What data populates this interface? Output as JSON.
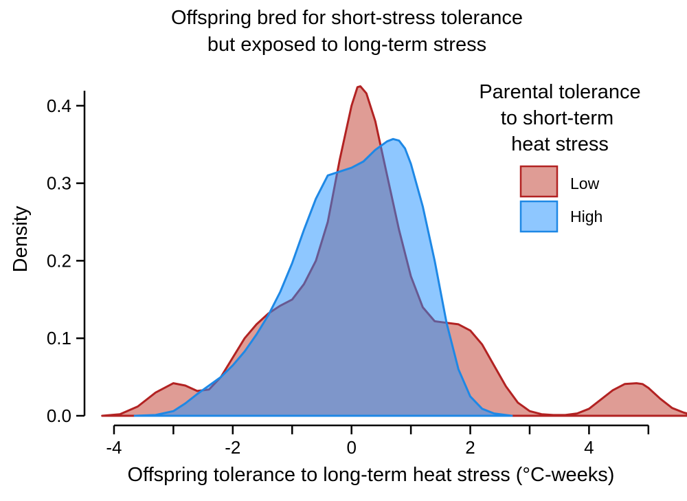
{
  "chart_data": {
    "type": "area",
    "title_lines": [
      "Offspring bred for short-stress tolerance",
      "but exposed to long-term stress"
    ],
    "xlabel": "Offspring tolerance to long-term heat stress (°C-weeks)",
    "ylabel": "Density",
    "xlim": [
      -4.15,
      5.65
    ],
    "ylim": [
      0,
      0.43
    ],
    "x_ticks": [
      -4,
      -3,
      -2,
      -1,
      0,
      1,
      2,
      3,
      4,
      5
    ],
    "x_tick_labels": [
      "-4",
      "",
      "-2",
      "",
      "0",
      "",
      "2",
      "",
      "4",
      ""
    ],
    "y_ticks": [
      0.0,
      0.1,
      0.2,
      0.3,
      0.4
    ],
    "y_tick_labels": [
      "0.0",
      "0.1",
      "0.2",
      "0.3",
      "0.4"
    ],
    "legend": {
      "title_lines": [
        "Parental tolerance",
        "to short-term",
        "heat stress"
      ],
      "position": "top-right"
    },
    "series": [
      {
        "name": "Low",
        "fill": "#c0392b",
        "stroke": "#b22222",
        "x": [
          -4.2,
          -3.9,
          -3.6,
          -3.3,
          -3.0,
          -2.8,
          -2.6,
          -2.4,
          -2.2,
          -2.0,
          -1.8,
          -1.6,
          -1.4,
          -1.2,
          -1.0,
          -0.8,
          -0.6,
          -0.4,
          -0.2,
          0.0,
          0.1,
          0.15,
          0.25,
          0.4,
          0.6,
          0.8,
          1.0,
          1.2,
          1.4,
          1.6,
          1.8,
          2.0,
          2.2,
          2.4,
          2.6,
          2.8,
          3.0,
          3.2,
          3.4,
          3.6,
          3.8,
          4.0,
          4.2,
          4.4,
          4.6,
          4.8,
          4.9,
          5.0,
          5.2,
          5.4,
          5.6,
          5.65
        ],
        "y": [
          0.0,
          0.002,
          0.012,
          0.03,
          0.042,
          0.039,
          0.032,
          0.034,
          0.05,
          0.075,
          0.1,
          0.118,
          0.132,
          0.142,
          0.15,
          0.17,
          0.2,
          0.25,
          0.33,
          0.4,
          0.424,
          0.425,
          0.416,
          0.38,
          0.31,
          0.24,
          0.18,
          0.14,
          0.122,
          0.12,
          0.118,
          0.11,
          0.092,
          0.065,
          0.038,
          0.017,
          0.006,
          0.002,
          0.001,
          0.001,
          0.003,
          0.009,
          0.021,
          0.033,
          0.041,
          0.042,
          0.041,
          0.036,
          0.022,
          0.01,
          0.004,
          0.003
        ]
      },
      {
        "name": "High",
        "fill": "#1e90ff",
        "stroke": "#1e88e5",
        "x": [
          -3.65,
          -3.3,
          -3.0,
          -2.8,
          -2.6,
          -2.4,
          -2.2,
          -2.0,
          -1.8,
          -1.6,
          -1.4,
          -1.2,
          -1.0,
          -0.8,
          -0.6,
          -0.4,
          -0.2,
          0.0,
          0.2,
          0.4,
          0.6,
          0.7,
          0.8,
          0.9,
          1.0,
          1.2,
          1.4,
          1.6,
          1.8,
          2.0,
          2.2,
          2.4,
          2.6,
          2.7
        ],
        "y": [
          0.0,
          0.001,
          0.006,
          0.016,
          0.028,
          0.039,
          0.05,
          0.065,
          0.083,
          0.105,
          0.13,
          0.16,
          0.197,
          0.24,
          0.28,
          0.31,
          0.315,
          0.32,
          0.328,
          0.343,
          0.354,
          0.357,
          0.355,
          0.345,
          0.325,
          0.27,
          0.2,
          0.12,
          0.06,
          0.025,
          0.009,
          0.003,
          0.001,
          0.0
        ]
      }
    ]
  }
}
